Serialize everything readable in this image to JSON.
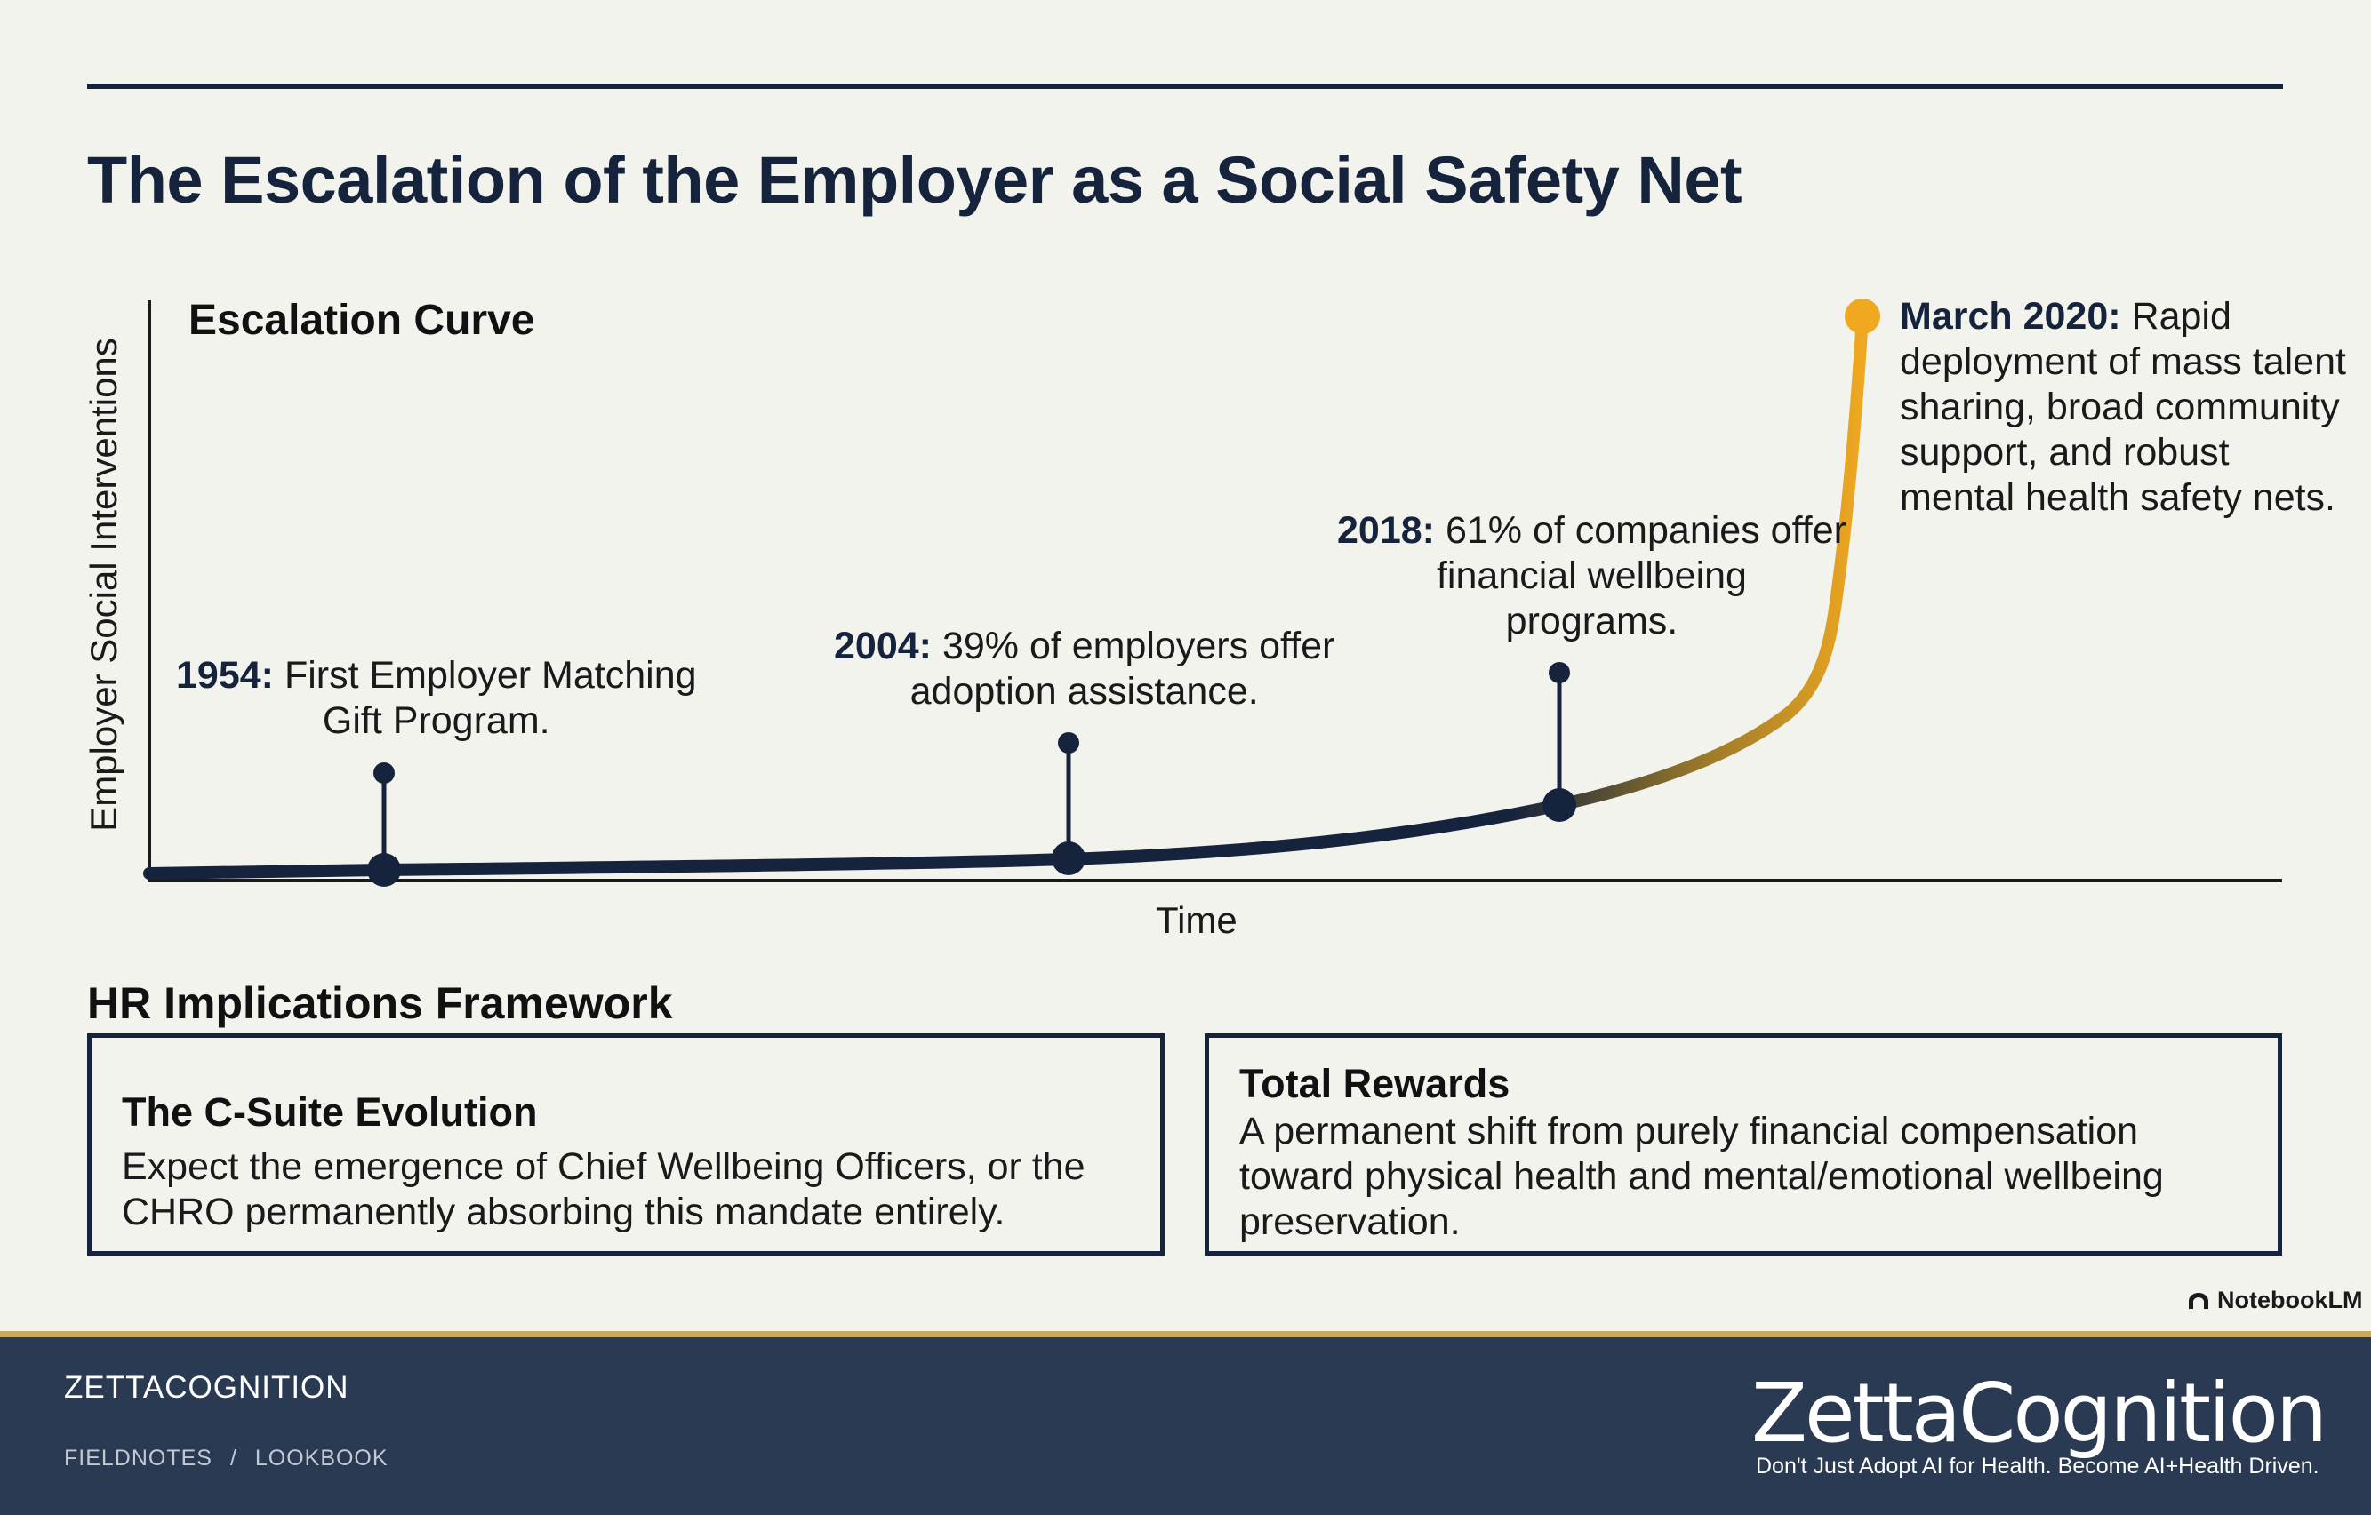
{
  "slide": {
    "title": "The Escalation of the Employer as a Social Safety Net",
    "chart_data": {
      "type": "line",
      "title": "Escalation Curve",
      "xlabel": "Time",
      "ylabel": "Employer Social Interventions",
      "colors": {
        "curve_start": "#16233d",
        "curve_end": "#f0a820",
        "axis": "#1a1a1a"
      },
      "milestones": [
        {
          "year": "1954",
          "text": "First Employer Matching Gift Program."
        },
        {
          "year": "2004",
          "text": "39% of employers offer adoption assistance."
        },
        {
          "year": "2018",
          "text": "61% of companies offer financial wellbeing programs."
        },
        {
          "year": "March 2020",
          "text": "Rapid deployment of mass talent sharing, broad community support, and robust mental health safety nets."
        }
      ]
    },
    "framework": {
      "title": "HR Implications Framework",
      "cards": [
        {
          "heading": "The C-Suite Evolution",
          "lines": [
            "Expect the emergence of Chief Wellbeing Officers, or the",
            "CHRO permanently absorbing this mandate entirely."
          ]
        },
        {
          "heading": "Total Rewards",
          "lines": [
            "A permanent shift from purely financial compensation",
            "toward physical health and mental/emotional wellbeing",
            "preservation."
          ]
        }
      ]
    },
    "watermark": "NotebookLM"
  },
  "footer": {
    "brand": "ZETTACOGNITION",
    "breadcrumb": [
      "FIELDNOTES",
      "/",
      "LOOKBOOK"
    ],
    "logo": "ZettaCognition",
    "tagline": "Don't Just Adopt AI for Health. Become AI+Health Driven."
  }
}
